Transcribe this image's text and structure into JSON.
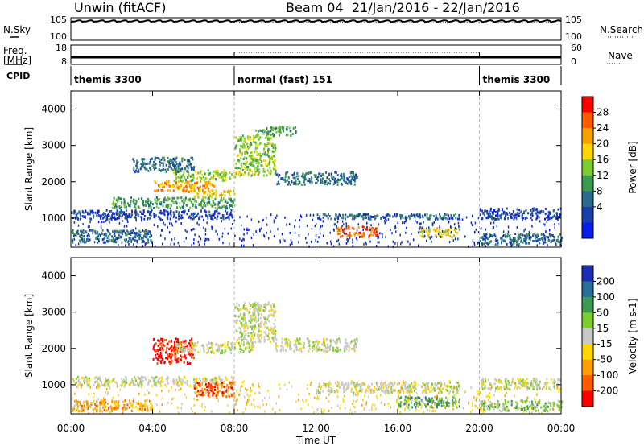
{
  "header": {
    "title": "Unwin (fitACF)",
    "beam": "Beam 04",
    "date_range": "21/Jan/2016 - 22/Jan/2016"
  },
  "left_labels": {
    "nsky": "N.Sky",
    "freq": "Freq.",
    "freq_unit": "[MHz]",
    "cpid": "CPID"
  },
  "right_labels": {
    "nsearch": "N.Search",
    "nave": "Nave"
  },
  "noise_axis_ticks": [
    "10^5",
    "10^0"
  ],
  "freq_axis_ticks": [
    "18",
    "8"
  ],
  "nave_axis_ticks": [
    "60",
    "0"
  ],
  "cpid_segments": [
    {
      "label": "themis 3300",
      "start_h": 0,
      "end_h": 8
    },
    {
      "label": "normal (fast) 151",
      "start_h": 8,
      "end_h": 20
    },
    {
      "label": "themis 3300",
      "start_h": 20,
      "end_h": 24
    }
  ],
  "power_scale": {
    "label": "Power [dB]",
    "ticks": [
      "28",
      "24",
      "20",
      "16",
      "12",
      "8",
      "4"
    ],
    "colors": [
      "#ff0000",
      "#ff5a00",
      "#f8a200",
      "#ffd700",
      "#7ccd2d",
      "#3a9a50",
      "#2b6a8f",
      "#1b3faa",
      "#0b1ee6"
    ]
  },
  "velocity_scale": {
    "label": "Velocity [m s-1]",
    "ticks": [
      "200",
      "100",
      "50",
      "15",
      "-15",
      "-50",
      "-100",
      "-200"
    ],
    "colors": [
      "#1a2fb3",
      "#2a6f9a",
      "#3a9a50",
      "#7ccd2d",
      "#c8c8c8",
      "#ffd700",
      "#ff9f00",
      "#ff5a00",
      "#ff0000"
    ]
  },
  "common": {
    "ylabel": "Slant Range [km]",
    "xlabel": "Time UT"
  },
  "chart_data": [
    {
      "type": "heatmap",
      "name": "power",
      "xlabel": "Time UT",
      "ylabel": "Slant Range [km]",
      "xlim": [
        0,
        24
      ],
      "ylim": [
        200,
        4500
      ],
      "x_ticks": [
        "00:00",
        "04:00",
        "08:00",
        "12:00",
        "16:00",
        "20:00",
        "00:00"
      ],
      "y_ticks": [
        1000,
        2000,
        3000,
        4000
      ],
      "colorbar_label": "Power [dB]",
      "regions": [
        {
          "t": [
            0,
            8
          ],
          "r": [
            1000,
            1250
          ],
          "c": 7
        },
        {
          "t": [
            0,
            4
          ],
          "r": [
            350,
            700
          ],
          "c": 6
        },
        {
          "t": [
            2,
            8
          ],
          "r": [
            1300,
            1600
          ],
          "c": 5
        },
        {
          "t": [
            4,
            7
          ],
          "r": [
            1750,
            2050
          ],
          "c": 2
        },
        {
          "t": [
            5,
            8
          ],
          "r": [
            2050,
            2350
          ],
          "c": 4
        },
        {
          "t": [
            6,
            8
          ],
          "r": [
            1600,
            1800
          ],
          "c": 3
        },
        {
          "t": [
            3,
            6
          ],
          "r": [
            2300,
            2700
          ],
          "c": 6
        },
        {
          "t": [
            8,
            10
          ],
          "r": [
            2200,
            3300
          ],
          "c": 4
        },
        {
          "t": [
            9,
            11
          ],
          "r": [
            3300,
            3550
          ],
          "c": 5
        },
        {
          "t": [
            12,
            19
          ],
          "r": [
            1000,
            1150
          ],
          "c": 6
        },
        {
          "t": [
            13,
            15
          ],
          "r": [
            500,
            800
          ],
          "c": 1
        },
        {
          "t": [
            17,
            19
          ],
          "r": [
            500,
            750
          ],
          "c": 3
        },
        {
          "t": [
            20,
            24
          ],
          "r": [
            1000,
            1300
          ],
          "c": 7
        },
        {
          "t": [
            20,
            24
          ],
          "r": [
            300,
            600
          ],
          "c": 6
        },
        {
          "t": [
            10,
            14
          ],
          "r": [
            1950,
            2300
          ],
          "c": 6
        }
      ]
    },
    {
      "type": "heatmap",
      "name": "velocity",
      "xlabel": "Time UT",
      "ylabel": "Slant Range [km]",
      "xlim": [
        0,
        24
      ],
      "ylim": [
        200,
        4500
      ],
      "x_ticks": [
        "00:00",
        "04:00",
        "08:00",
        "12:00",
        "16:00",
        "20:00",
        "00:00"
      ],
      "y_ticks": [
        1000,
        2000,
        3000,
        4000
      ],
      "colorbar_label": "Velocity [m s-1]",
      "regions": [
        {
          "t": [
            0,
            4
          ],
          "r": [
            300,
            600
          ],
          "c": 6
        },
        {
          "t": [
            0,
            8
          ],
          "r": [
            1000,
            1250
          ],
          "c": 4
        },
        {
          "t": [
            4,
            6
          ],
          "r": [
            1600,
            2300
          ],
          "c": 8
        },
        {
          "t": [
            6,
            8
          ],
          "r": [
            700,
            1100
          ],
          "c": 7
        },
        {
          "t": [
            5,
            9
          ],
          "r": [
            1900,
            2200
          ],
          "c": 4
        },
        {
          "t": [
            8,
            10
          ],
          "r": [
            2200,
            3300
          ],
          "c": 4
        },
        {
          "t": [
            10,
            14
          ],
          "r": [
            1950,
            2300
          ],
          "c": 4
        },
        {
          "t": [
            12,
            19
          ],
          "r": [
            800,
            1100
          ],
          "c": 4
        },
        {
          "t": [
            16,
            19
          ],
          "r": [
            400,
            700
          ],
          "c": 2
        },
        {
          "t": [
            20,
            24
          ],
          "r": [
            300,
            600
          ],
          "c": 3
        },
        {
          "t": [
            20,
            24
          ],
          "r": [
            900,
            1200
          ],
          "c": 4
        }
      ]
    }
  ]
}
